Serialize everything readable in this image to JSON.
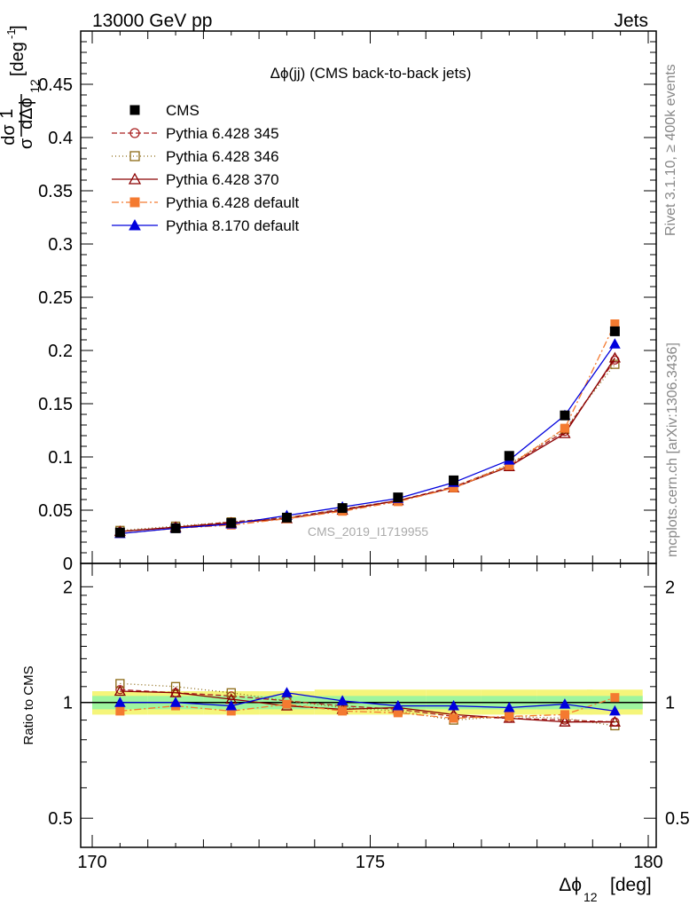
{
  "header": {
    "left": "13000 GeV pp",
    "right": "Jets"
  },
  "side_text": {
    "rivet": "Rivet 3.1.10, ≥ 400k events",
    "mcplots": "mcplots.cern.ch [arXiv:1306.3436]"
  },
  "watermark": "CMS_2019_I1719955",
  "chart_data": {
    "type": "line",
    "title": "Δϕ(jj) (CMS back-to-back jets)",
    "xlabel": "Δϕ",
    "xlabel_sub": "12",
    "xlabel_unit": "[deg]",
    "ylabel_top": {
      "one": "1",
      "dsigma": "dσ",
      "sigma": "σ",
      "dphi": "dΔϕ",
      "sub": "12",
      "unit": "[deg",
      "unit_exp": "-1",
      "unit_close": "]"
    },
    "ylabel_ratio": "Ratio to CMS",
    "xlim": [
      170,
      180
    ],
    "ylim_top": [
      0,
      0.5
    ],
    "ylim_ratio": [
      0.42,
      2.3
    ],
    "x_ticks": [
      {
        "value": 170,
        "label": "170"
      },
      {
        "value": 175,
        "label": "175"
      },
      {
        "value": 180,
        "label": "180"
      }
    ],
    "y_ticks_top": [
      {
        "value": 0,
        "label": "0"
      },
      {
        "value": 0.05,
        "label": "0.05"
      },
      {
        "value": 0.1,
        "label": "0.1"
      },
      {
        "value": 0.15,
        "label": "0.15"
      },
      {
        "value": 0.2,
        "label": "0.2"
      },
      {
        "value": 0.25,
        "label": "0.25"
      },
      {
        "value": 0.3,
        "label": "0.3"
      },
      {
        "value": 0.35,
        "label": "0.35"
      },
      {
        "value": 0.4,
        "label": "0.4"
      },
      {
        "value": 0.45,
        "label": "0.45"
      }
    ],
    "y_ticks_ratio": [
      {
        "value": 0.5,
        "label": "0.5"
      },
      {
        "value": 1,
        "label": "1"
      },
      {
        "value": 2,
        "label": "2"
      }
    ],
    "ratio_scale": "log",
    "legend_position": "top-left",
    "x": [
      170.5,
      171.5,
      172.5,
      173.5,
      174.5,
      175.5,
      176.5,
      177.5,
      178.5,
      179.4
    ],
    "ratio_band": {
      "inner": [
        [
          0.96,
          1.04
        ],
        [
          0.96,
          1.04
        ],
        [
          0.96,
          1.04
        ],
        [
          0.96,
          1.04
        ],
        [
          0.96,
          1.04
        ],
        [
          0.96,
          1.04
        ],
        [
          0.96,
          1.04
        ],
        [
          0.96,
          1.04
        ],
        [
          0.96,
          1.04
        ],
        [
          0.96,
          1.04
        ]
      ],
      "outer": [
        [
          0.93,
          1.07
        ],
        [
          0.93,
          1.07
        ],
        [
          0.93,
          1.07
        ],
        [
          0.93,
          1.07
        ],
        [
          0.93,
          1.08
        ],
        [
          0.93,
          1.08
        ],
        [
          0.93,
          1.08
        ],
        [
          0.93,
          1.08
        ],
        [
          0.93,
          1.08
        ],
        [
          0.93,
          1.08
        ]
      ]
    },
    "series": [
      {
        "name": "CMS",
        "color": "#000000",
        "marker": "square-filled",
        "dash": "none",
        "is_data": true,
        "values": [
          0.029,
          0.033,
          0.038,
          0.043,
          0.052,
          0.062,
          0.078,
          0.101,
          0.139,
          0.218
        ],
        "ratio": [
          1,
          1,
          1,
          1,
          1,
          1,
          1,
          1,
          1,
          1
        ]
      },
      {
        "name": "Pythia 6.428 345",
        "color": "#aa2222",
        "marker": "circle-open",
        "dash": "6,3",
        "values": [
          0.03,
          0.034,
          0.039,
          0.043,
          0.051,
          0.059,
          0.072,
          0.092,
          0.124,
          0.191
        ],
        "ratio": [
          1.08,
          1.06,
          1.04,
          1.01,
          0.98,
          0.96,
          0.92,
          0.91,
          0.9,
          0.89
        ]
      },
      {
        "name": "Pythia 6.428 346",
        "color": "#8b6914",
        "marker": "square-open",
        "dash": "1,3",
        "values": [
          0.031,
          0.035,
          0.039,
          0.043,
          0.051,
          0.059,
          0.071,
          0.093,
          0.126,
          0.187
        ],
        "ratio": [
          1.12,
          1.1,
          1.06,
          1.01,
          0.97,
          0.95,
          0.9,
          0.92,
          0.91,
          0.87
        ]
      },
      {
        "name": "Pythia 6.428 370",
        "color": "#8b0000",
        "marker": "triangle-open",
        "dash": "none",
        "values": [
          0.03,
          0.034,
          0.038,
          0.042,
          0.05,
          0.059,
          0.071,
          0.091,
          0.122,
          0.193
        ],
        "ratio": [
          1.07,
          1.06,
          1.02,
          0.98,
          0.96,
          0.97,
          0.93,
          0.91,
          0.89,
          0.89
        ]
      },
      {
        "name": "Pythia 6.428 default",
        "color": "#f47a30",
        "marker": "square-filled",
        "dash": "8,3,2,3",
        "values": [
          0.028,
          0.033,
          0.036,
          0.042,
          0.049,
          0.058,
          0.071,
          0.092,
          0.127,
          0.225
        ],
        "ratio": [
          0.95,
          0.98,
          0.95,
          0.99,
          0.95,
          0.94,
          0.91,
          0.92,
          0.93,
          1.03
        ]
      },
      {
        "name": "Pythia 8.170 default",
        "color": "#0000dd",
        "marker": "triangle-filled",
        "dash": "none",
        "values": [
          0.028,
          0.033,
          0.037,
          0.045,
          0.053,
          0.061,
          0.076,
          0.097,
          0.139,
          0.206
        ],
        "ratio": [
          1.0,
          1.0,
          0.98,
          1.06,
          1.01,
          0.98,
          0.98,
          0.97,
          0.99,
          0.95
        ]
      }
    ]
  }
}
